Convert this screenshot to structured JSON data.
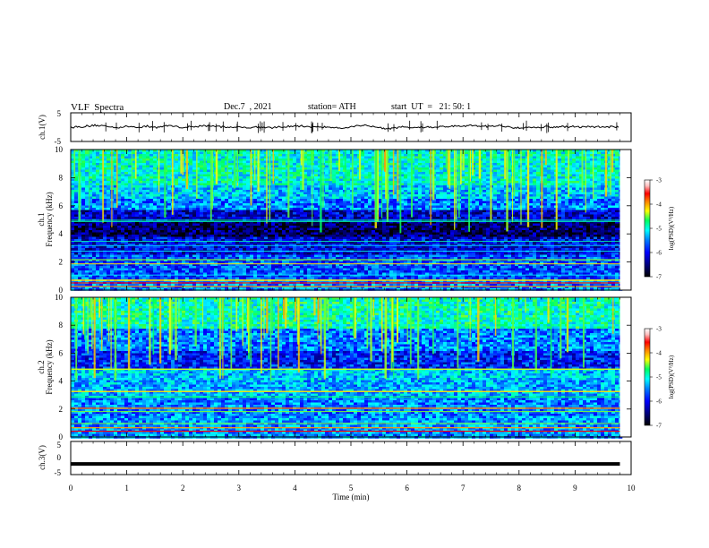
{
  "header": {
    "title": "VLF  Spectra",
    "date": "Dec.7  , 2021",
    "station": "station= ATH",
    "start": "start  UT  =   21: 50: 1"
  },
  "chart_data": [
    {
      "type": "line",
      "panel": "ch1",
      "ylabel": "ch.1(V)",
      "ylim": [
        -5,
        5
      ],
      "yticks": [
        "5",
        "-5"
      ],
      "xlim": [
        0,
        10
      ],
      "description_values": {
        "baseline": 0.1,
        "noise_amplitude": 0.6
      },
      "color": "#000000"
    },
    {
      "type": "heatmap",
      "panel": "ch1-spectrogram",
      "ylabel_lines": [
        "ch.1",
        "Frequency  (kHz)"
      ],
      "ylim": [
        0,
        10
      ],
      "yticks": [
        "0",
        "2",
        "4",
        "6",
        "8",
        "10"
      ],
      "xlim": [
        0,
        10
      ],
      "colorbar": {
        "label": "log(PSD)(V²/Hz)",
        "ticks": [
          "-3",
          "-4",
          "-5",
          "-6",
          "-7"
        ],
        "range": [
          -7,
          -3
        ]
      }
    },
    {
      "type": "heatmap",
      "panel": "ch2-spectrogram",
      "ylabel_lines": [
        "ch.2",
        "Frequency  (kHz)"
      ],
      "ylim": [
        0,
        10
      ],
      "yticks": [
        "0",
        "2",
        "4",
        "6",
        "8",
        "10"
      ],
      "xlim": [
        0,
        10
      ],
      "colorbar": {
        "label": "log(PSD)(V²/Hz)",
        "ticks": [
          "-3",
          "-4",
          "-5",
          "-6",
          "-7"
        ],
        "range": [
          -7,
          -3
        ]
      }
    },
    {
      "type": "line",
      "panel": "ch3",
      "ylabel": "ch.3(V)",
      "ylim": [
        -5,
        5
      ],
      "yticks": [
        "5",
        "0",
        "-5"
      ],
      "xlim": [
        0,
        10
      ],
      "description_values": {
        "baseline": -1.8
      },
      "color": "#000000"
    }
  ],
  "xaxis": {
    "label": "Time  (min)",
    "ticks": [
      "0",
      "1",
      "2",
      "3",
      "4",
      "5",
      "6",
      "7",
      "8",
      "9",
      "10"
    ],
    "data_end": 9.8
  },
  "colormap": [
    "#000000",
    "#00007a",
    "#0000ff",
    "#0080ff",
    "#00ffff",
    "#00ff60",
    "#ffff00",
    "#ff8000",
    "#ff0000",
    "#ffc0c0",
    "#ffffff"
  ]
}
